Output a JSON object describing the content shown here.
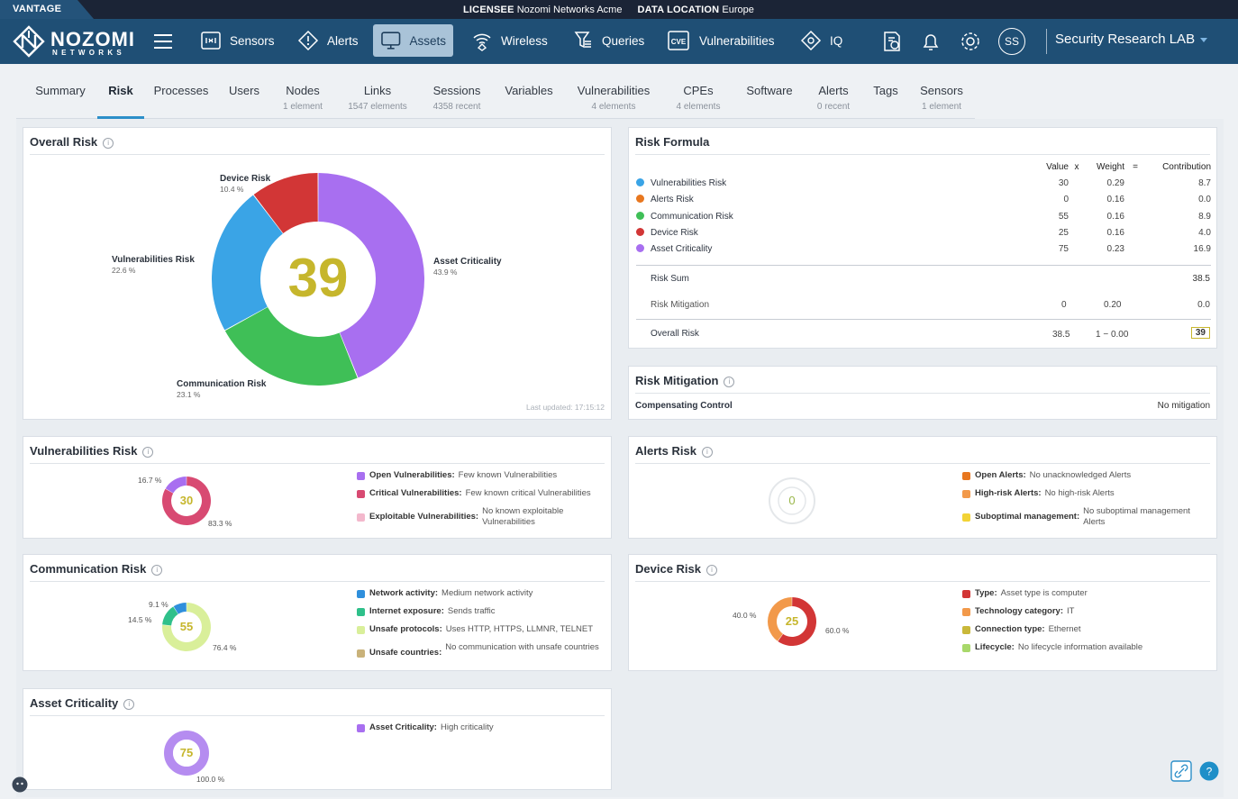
{
  "strip": {
    "product": "VANTAGE",
    "licensee_label": "LICENSEE",
    "licensee_value": "Nozomi Networks Acme",
    "location_label": "DATA LOCATION",
    "location_value": "Europe"
  },
  "logo": {
    "word": "NOZOMI",
    "sub": "NETWORKS"
  },
  "nav": {
    "items": [
      {
        "label": "Sensors",
        "icon": "sensors-icon"
      },
      {
        "label": "Alerts",
        "icon": "alert-diamond-icon"
      },
      {
        "label": "Assets",
        "icon": "monitor-icon",
        "active": true
      },
      {
        "label": "Wireless",
        "icon": "wireless-icon"
      },
      {
        "label": "Queries",
        "icon": "queries-icon"
      },
      {
        "label": "Vulnerabilities",
        "icon": "cve-icon"
      },
      {
        "label": "IQ",
        "icon": "iq-icon"
      }
    ],
    "avatar": "SS",
    "workspace": "Security Research LAB"
  },
  "tabs": [
    {
      "label": "Summary",
      "sub": ""
    },
    {
      "label": "Risk",
      "sub": "",
      "active": true
    },
    {
      "label": "Processes",
      "sub": ""
    },
    {
      "label": "Users",
      "sub": ""
    },
    {
      "label": "Nodes",
      "sub": "1 element"
    },
    {
      "label": "Links",
      "sub": "1547 elements"
    },
    {
      "label": "Sessions",
      "sub": "4358 recent"
    },
    {
      "label": "Variables",
      "sub": ""
    },
    {
      "label": "Vulnerabilities",
      "sub": "4 elements"
    },
    {
      "label": "CPEs",
      "sub": "4 elements"
    },
    {
      "label": "Software",
      "sub": ""
    },
    {
      "label": "Alerts",
      "sub": "0 recent"
    },
    {
      "label": "Tags",
      "sub": ""
    },
    {
      "label": "Sensors",
      "sub": "1 element"
    }
  ],
  "overall": {
    "title": "Overall Risk",
    "score": "39",
    "last_updated": "Last updated: 17:15:12",
    "slices": [
      {
        "name": "Asset Criticality",
        "pct": "43.9 %",
        "value": 43.9,
        "color": "#a86ff0"
      },
      {
        "name": "Communication Risk",
        "pct": "23.1 %",
        "value": 23.1,
        "color": "#3fbf57"
      },
      {
        "name": "Vulnerabilities Risk",
        "pct": "22.6 %",
        "value": 22.6,
        "color": "#3aa4e6"
      },
      {
        "name": "Device Risk",
        "pct": "10.4 %",
        "value": 10.4,
        "color": "#d23636"
      }
    ]
  },
  "formula": {
    "title": "Risk Formula",
    "h_value": "Value",
    "h_x": "x",
    "h_weight": "Weight",
    "h_eq": "=",
    "h_contrib": "Contribution",
    "rows": [
      {
        "name": "Vulnerabilities Risk",
        "color": "#3aa4e6",
        "value": "30",
        "weight": "0.29",
        "contrib": "8.7"
      },
      {
        "name": "Alerts Risk",
        "color": "#e8771f",
        "value": "0",
        "weight": "0.16",
        "contrib": "0.0"
      },
      {
        "name": "Communication Risk",
        "color": "#3fbf57",
        "value": "55",
        "weight": "0.16",
        "contrib": "8.9"
      },
      {
        "name": "Device Risk",
        "color": "#d23636",
        "value": "25",
        "weight": "0.16",
        "contrib": "4.0"
      },
      {
        "name": "Asset Criticality",
        "color": "#a86ff0",
        "value": "75",
        "weight": "0.23",
        "contrib": "16.9"
      }
    ],
    "sum_label": "Risk Sum",
    "sum": "38.5",
    "mit_label": "Risk Mitigation",
    "mit_value": "0",
    "mit_weight": "0.20",
    "mit_contrib": "0.0",
    "overall_label": "Overall Risk",
    "overall_value": "38.5",
    "overall_factor": "1 − 0.00",
    "overall_result": "39"
  },
  "mitigation": {
    "title": "Risk Mitigation",
    "label": "Compensating Control",
    "value": "No mitigation"
  },
  "vuln": {
    "title": "Vulnerabilities Risk",
    "score": "30",
    "p1": "16.7 %",
    "p2": "83.3 %",
    "legend": [
      {
        "k": "Open Vulnerabilities:",
        "v": "Few known Vulnerabilities",
        "color": "#a86ff0"
      },
      {
        "k": "Critical Vulnerabilities:",
        "v": "Few known critical Vulnerabilities",
        "color": "#d84a72"
      },
      {
        "k": "Exploitable Vulnerabilities:",
        "v": "No known exploitable Vulnerabilities",
        "color": "#f3b8cc"
      }
    ]
  },
  "alerts": {
    "title": "Alerts Risk",
    "score": "0",
    "legend": [
      {
        "k": "Open Alerts:",
        "v": "No unacknowledged Alerts",
        "color": "#e8771f"
      },
      {
        "k": "High-risk Alerts:",
        "v": "No high-risk Alerts",
        "color": "#f2994a"
      },
      {
        "k": "Suboptimal management:",
        "v": "No suboptimal management Alerts",
        "color": "#f2d336"
      }
    ]
  },
  "comm": {
    "title": "Communication Risk",
    "score": "55",
    "p1": "9.1 %",
    "p2": "14.5 %",
    "p3": "76.4 %",
    "legend": [
      {
        "k": "Network activity:",
        "v": "Medium network activity",
        "color": "#2f8fdc"
      },
      {
        "k": "Internet exposure:",
        "v": "Sends traffic",
        "color": "#2fc08a"
      },
      {
        "k": "Unsafe protocols:",
        "v": "Uses HTTP, HTTPS, LLMNR, TELNET",
        "color": "#d9ef9a"
      },
      {
        "k": "Unsafe countries:",
        "v": "No communication with unsafe countries",
        "color": "#c9b27a"
      }
    ]
  },
  "device": {
    "title": "Device Risk",
    "score": "25",
    "p1": "40.0 %",
    "p2": "60.0 %",
    "legend": [
      {
        "k": "Type:",
        "v": "Asset type is computer",
        "color": "#d23636"
      },
      {
        "k": "Technology category:",
        "v": "IT",
        "color": "#f2994a"
      },
      {
        "k": "Connection type:",
        "v": "Ethernet",
        "color": "#c9b83a"
      },
      {
        "k": "Lifecycle:",
        "v": "No lifecycle information available",
        "color": "#a8d86a"
      }
    ]
  },
  "asset": {
    "title": "Asset Criticality",
    "score": "75",
    "p1": "100.0 %",
    "legend": [
      {
        "k": "Asset Criticality:",
        "v": "High criticality",
        "color": "#a86ff0"
      }
    ]
  }
}
